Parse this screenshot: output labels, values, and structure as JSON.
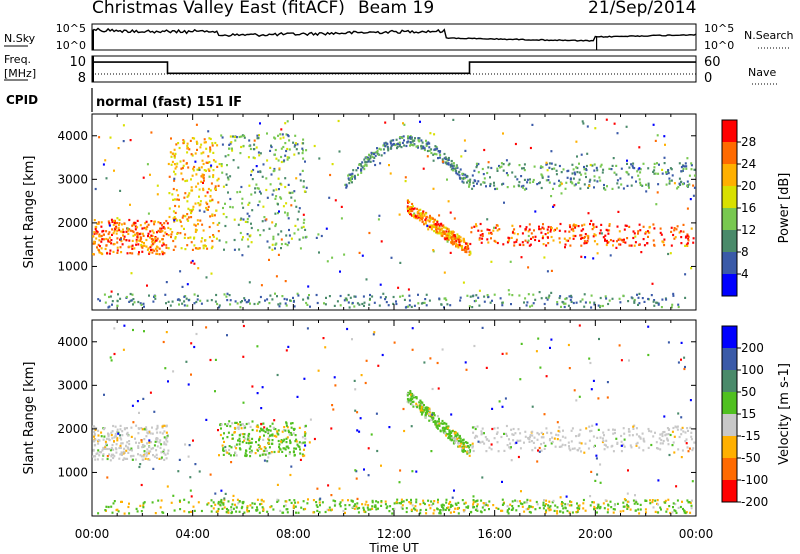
{
  "header": {
    "station": "Christmas Valley East (fitACF)",
    "beam": "Beam 19",
    "date": "21/Sep/2014"
  },
  "noise_panel": {
    "left_label": "N.Sky",
    "right_label": "N.Search",
    "left_ticks": [
      "10^5",
      "10^0"
    ],
    "right_ticks": [
      "10^5",
      "10^0"
    ]
  },
  "freq_panel": {
    "left_label_line1": "Freq.",
    "left_label_line2": "[MHz]",
    "right_label": "Nave",
    "left_ticks": [
      "10",
      "8"
    ],
    "right_ticks": [
      "60",
      "0"
    ],
    "freq_steps": [
      {
        "start_hour": 0.0,
        "end_hour": 3.0,
        "freq_mhz": 10.3
      },
      {
        "start_hour": 3.0,
        "end_hour": 15.0,
        "freq_mhz": 9.0
      },
      {
        "start_hour": 15.0,
        "end_hour": 24.0,
        "freq_mhz": 10.3
      }
    ]
  },
  "cpid": {
    "label": "CPID",
    "mode": "normal (fast) 151 IF"
  },
  "chart_data": [
    {
      "type": "heatmap",
      "name": "power",
      "ylabel": "Slant Range [km]",
      "xlabel": "",
      "x_ticks": [],
      "y_ticks": [
        "1000",
        "2000",
        "3000",
        "4000"
      ],
      "ylim": [
        0,
        4500
      ],
      "xlim_hours": [
        0,
        24
      ],
      "colorbar_label": "Power [dB]",
      "colorbar_ticks": [
        "28",
        "24",
        "20",
        "16",
        "12",
        "8",
        "4"
      ],
      "colorbar_colors": [
        "#ff0000",
        "#ff6a00",
        "#ffb000",
        "#d8e000",
        "#78c850",
        "#4a8a6a",
        "#3a5aa8",
        "#0000ff"
      ],
      "features": [
        {
          "band": "F-region low",
          "start_hour": 0.0,
          "end_hour": 3.0,
          "range_km": [
            1300,
            2100
          ],
          "power_db": 26
        },
        {
          "band": "F-region rise",
          "start_hour": 3.0,
          "end_hour": 5.0,
          "range_km": [
            1400,
            4000
          ],
          "power_db": 22
        },
        {
          "band": "scatter 08 UT",
          "start_hour": 5.0,
          "end_hour": 8.5,
          "range_km": [
            1400,
            4100
          ],
          "power_db": 12
        },
        {
          "band": "arc 12 UT",
          "start_hour": 10.0,
          "end_hour": 15.0,
          "range_km": [
            2900,
            3900
          ],
          "power_db": 10
        },
        {
          "band": "descending",
          "start_hour": 12.5,
          "end_hour": 15.0,
          "range_km": [
            1400,
            2400
          ],
          "power_db": 24
        },
        {
          "band": "night band",
          "start_hour": 15.0,
          "end_hour": 24.0,
          "range_km": [
            1500,
            2000
          ],
          "power_db": 28
        },
        {
          "band": "upper band",
          "start_hour": 15.0,
          "end_hour": 24.0,
          "range_km": [
            2800,
            3400
          ],
          "power_db": 10
        }
      ]
    },
    {
      "type": "heatmap",
      "name": "velocity",
      "ylabel": "Slant Range [km]",
      "xlabel": "Time UT",
      "x_ticks": [
        "00:00",
        "04:00",
        "08:00",
        "12:00",
        "16:00",
        "20:00",
        "00:00"
      ],
      "y_ticks": [
        "1000",
        "2000",
        "3000",
        "4000"
      ],
      "ylim": [
        0,
        4500
      ],
      "xlim_hours": [
        0,
        24
      ],
      "colorbar_label": "Velocity [m s-1]",
      "colorbar_ticks": [
        "200",
        "100",
        "50",
        "15",
        "-15",
        "-50",
        "-100",
        "-200"
      ],
      "colorbar_colors": [
        "#0000ff",
        "#3a5aa8",
        "#4a8a6a",
        "#50c020",
        "#c8c8c8",
        "#ffb000",
        "#ff6a00",
        "#ff0000"
      ],
      "features": [
        {
          "band": "ground scatter",
          "start_hour": 0.0,
          "end_hour": 3.0,
          "range_km": [
            1300,
            2100
          ],
          "velocity_ms": 0
        },
        {
          "band": "green patch",
          "start_hour": 5.0,
          "end_hour": 8.5,
          "range_km": [
            1400,
            2200
          ],
          "velocity_ms": 40
        },
        {
          "band": "descending",
          "start_hour": 12.5,
          "end_hour": 15.0,
          "range_km": [
            1500,
            2800
          ],
          "velocity_ms": 40
        },
        {
          "band": "night ground scatter",
          "start_hour": 15.0,
          "end_hour": 24.0,
          "range_km": [
            1500,
            2100
          ],
          "velocity_ms": 0
        },
        {
          "band": "bottom",
          "start_hour": 5.0,
          "end_hour": 24.0,
          "range_km": [
            100,
            400
          ],
          "velocity_ms": 40
        }
      ]
    }
  ]
}
